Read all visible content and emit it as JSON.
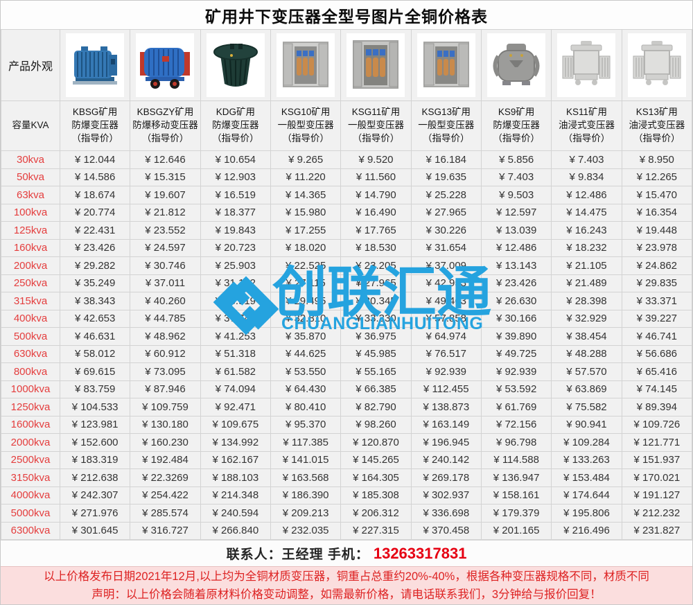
{
  "title": "矿用井下变压器全型号图片全铜价格表",
  "table": {
    "appearance_label": "产品外观",
    "capacity_label": "容量KVA",
    "currency_prefix": "¥ ",
    "products": [
      {
        "model_name": "KBSG矿用\n防爆变压器\n（指导价）",
        "image": "blue-ribbed-transformer"
      },
      {
        "model_name": "KBSGZY矿用\n防爆移动变压器\n（指导价）",
        "image": "blue-mobile-transformer-with-wheels"
      },
      {
        "model_name": "KDG矿用\n防爆变压器\n（指导价）",
        "image": "dark-green-cylinder-transformer"
      },
      {
        "model_name": "KSG10矿用\n一般型变压器\n（指导价）",
        "image": "steel-cabinet-open-doors-coils"
      },
      {
        "model_name": "KSG11矿用\n一般型变压器\n（指导价）",
        "image": "steel-cabinet-open-doors-coils"
      },
      {
        "model_name": "KSG13矿用\n一般型变压器\n（指导价）",
        "image": "steel-cabinet-open-doors-coils"
      },
      {
        "model_name": "KS9矿用\n防爆变压器\n（指导价）",
        "image": "gray-rounded-transformer"
      },
      {
        "model_name": "KS11矿用\n油浸式变压器\n（指导价）",
        "image": "light-gray-oil-immersed-transformer"
      },
      {
        "model_name": "KS13矿用\n油浸式变压器\n（指导价）",
        "image": "light-gray-oil-immersed-transformer"
      }
    ],
    "rows": [
      {
        "capacity": "30kva",
        "prices": [
          "12.044",
          "12.646",
          "10.654",
          "9.265",
          "9.520",
          "16.184",
          "5.856",
          "7.403",
          "8.950"
        ]
      },
      {
        "capacity": "50kva",
        "prices": [
          "14.586",
          "15.315",
          "12.903",
          "11.220",
          "11.560",
          "19.635",
          "7.403",
          "9.834",
          "12.265"
        ]
      },
      {
        "capacity": "63kva",
        "prices": [
          "18.674",
          "19.607",
          "16.519",
          "14.365",
          "14.790",
          "25.228",
          "9.503",
          "12.486",
          "15.470"
        ]
      },
      {
        "capacity": "100kva",
        "prices": [
          "20.774",
          "21.812",
          "18.377",
          "15.980",
          "16.490",
          "27.965",
          "12.597",
          "14.475",
          "16.354"
        ]
      },
      {
        "capacity": "125kva",
        "prices": [
          "22.431",
          "23.552",
          "19.843",
          "17.255",
          "17.765",
          "30.226",
          "13.039",
          "16.243",
          "19.448"
        ]
      },
      {
        "capacity": "160kva",
        "prices": [
          "23.426",
          "24.597",
          "20.723",
          "18.020",
          "18.530",
          "31.654",
          "12.486",
          "18.232",
          "23.978"
        ]
      },
      {
        "capacity": "200kva",
        "prices": [
          "29.282",
          "30.746",
          "25.903",
          "22.525",
          "23.205",
          "37.009",
          "13.143",
          "21.105",
          "24.862"
        ]
      },
      {
        "capacity": "250kva",
        "prices": [
          "35.249",
          "37.011",
          "31.182",
          "27.115",
          "27.965",
          "42.953",
          "23.426",
          "21.489",
          "29.835"
        ]
      },
      {
        "capacity": "315kva",
        "prices": [
          "38.343",
          "40.260",
          "33.919",
          "29.495",
          "30.345",
          "49.463",
          "26.630",
          "28.398",
          "33.371"
        ]
      },
      {
        "capacity": "400kva",
        "prices": [
          "42.653",
          "44.785",
          "37.743",
          "32.810",
          "33.330",
          "57.858",
          "30.166",
          "32.929",
          "39.227"
        ]
      },
      {
        "capacity": "500kva",
        "prices": [
          "46.631",
          "48.962",
          "41.253",
          "35.870",
          "36.975",
          "64.974",
          "39.890",
          "38.454",
          "46.741"
        ]
      },
      {
        "capacity": "630kva",
        "prices": [
          "58.012",
          "60.912",
          "51.318",
          "44.625",
          "45.985",
          "76.517",
          "49.725",
          "48.288",
          "56.686"
        ]
      },
      {
        "capacity": "800kva",
        "prices": [
          "69.615",
          "73.095",
          "61.582",
          "53.550",
          "55.165",
          "92.939",
          "92.939",
          "57.570",
          "65.416"
        ]
      },
      {
        "capacity": "1000kva",
        "prices": [
          "83.759",
          "87.946",
          "74.094",
          "64.430",
          "66.385",
          "112.455",
          "53.592",
          "63.869",
          "74.145"
        ]
      },
      {
        "capacity": "1250kva",
        "prices": [
          "104.533",
          "109.759",
          "92.471",
          "80.410",
          "82.790",
          "138.873",
          "61.769",
          "75.582",
          "89.394"
        ]
      },
      {
        "capacity": "1600kva",
        "prices": [
          "123.981",
          "130.180",
          "109.675",
          "95.370",
          "98.260",
          "163.149",
          "72.156",
          "90.941",
          "109.726"
        ]
      },
      {
        "capacity": "2000kva",
        "prices": [
          "152.600",
          "160.230",
          "134.992",
          "117.385",
          "120.870",
          "196.945",
          "96.798",
          "109.284",
          "121.771"
        ]
      },
      {
        "capacity": "2500kva",
        "prices": [
          "183.319",
          "192.484",
          "162.167",
          "141.015",
          "145.265",
          "240.142",
          "114.588",
          "133.263",
          "151.937"
        ]
      },
      {
        "capacity": "3150kva",
        "prices": [
          "212.638",
          "22.3269",
          "188.103",
          "163.568",
          "164.305",
          "269.178",
          "136.947",
          "153.484",
          "170.021"
        ]
      },
      {
        "capacity": "4000kva",
        "prices": [
          "242.307",
          "254.422",
          "214.348",
          "186.390",
          "185.308",
          "302.937",
          "158.161",
          "174.644",
          "191.127"
        ]
      },
      {
        "capacity": "5000kva",
        "prices": [
          "271.976",
          "285.574",
          "240.594",
          "209.213",
          "206.312",
          "336.698",
          "179.379",
          "195.806",
          "212.232"
        ]
      },
      {
        "capacity": "6300kva",
        "prices": [
          "301.645",
          "316.727",
          "266.840",
          "232.035",
          "227.315",
          "370.458",
          "201.165",
          "216.496",
          "231.827"
        ]
      }
    ]
  },
  "contact": {
    "label": "联系人：王经理  手机：",
    "phone": "13263317831"
  },
  "notice": {
    "line1": "以上价格发布日期2021年12月,以上均为全铜材质变压器，铜重占总重约20%-40%，根据各种变压器规格不同，材质不同",
    "line2": "声明：以上价格会随着原材料价格变动调整，如需最新价格，请电话联系我们，3分钟给与报价回复！"
  },
  "watermark": {
    "logo": "chuanglian-logo",
    "text": "创联汇通",
    "subtext": "CHUANGLIANHUITONG",
    "color": "#25a3df"
  },
  "colors": {
    "capacity_text": "#e43d3d",
    "price_text": "#333333",
    "notice_bg": "#fbdede",
    "notice_text": "#dd2222",
    "phone_text": "#e60012",
    "watermark": "#25a3df"
  }
}
